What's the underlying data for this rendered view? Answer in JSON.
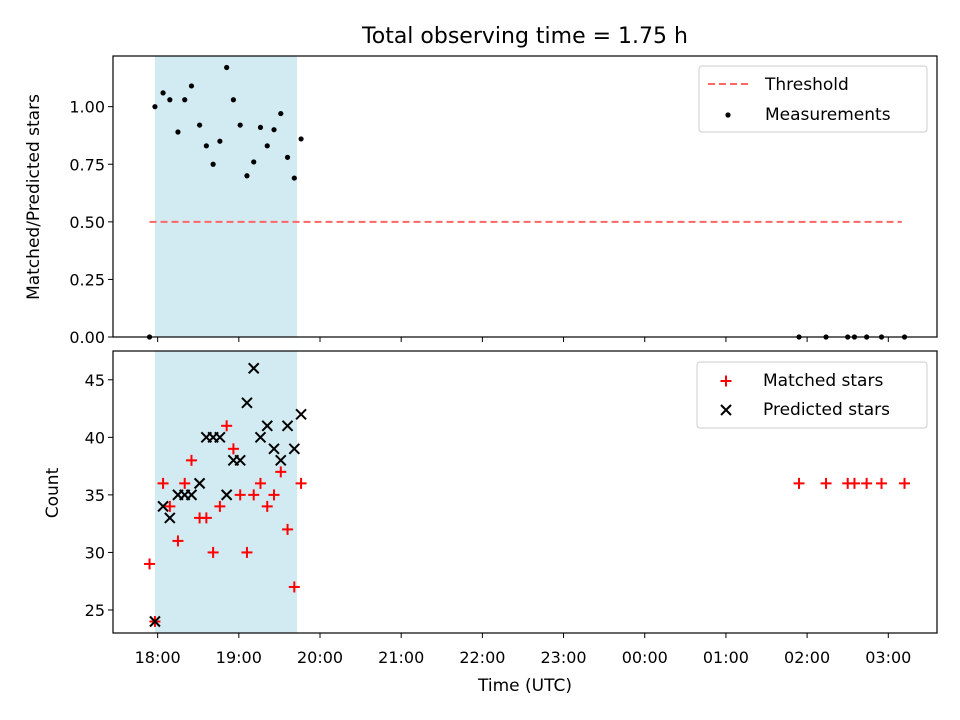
{
  "title": "Total observing time = 1.75 h",
  "colors": {
    "shade": "#add8e6",
    "threshold": "#ff6666",
    "matched": "#ff0000",
    "predicted": "#000000",
    "measurements": "#000000"
  },
  "chart_data": [
    {
      "type": "scatter",
      "ylabel": "Matched/Predicted stars",
      "ylim": [
        0,
        1.22
      ],
      "yticks": [
        "0.00",
        "0.25",
        "0.50",
        "0.75",
        "1.00"
      ],
      "yticks_values": [
        0,
        0.25,
        0.5,
        0.75,
        1.0
      ],
      "shaded_span": [
        "17:58",
        "19:43"
      ],
      "legend": {
        "position": "upper right",
        "entries": [
          "Threshold",
          "Measurements"
        ]
      },
      "threshold": {
        "name": "Threshold",
        "y": 0.5,
        "x_range": [
          "17:54",
          "27:10"
        ]
      },
      "series": [
        {
          "name": "Measurements",
          "x": [
            "17:54",
            "17:58",
            "18:04",
            "18:09",
            "18:15",
            "18:20",
            "18:25",
            "18:31",
            "18:36",
            "18:41",
            "18:46",
            "18:51",
            "18:56",
            "19:01",
            "19:06",
            "19:11",
            "19:16",
            "19:21",
            "19:26",
            "19:31",
            "19:36",
            "19:41",
            "19:46",
            "25:54",
            "26:14",
            "26:30",
            "26:35",
            "26:44",
            "26:55",
            "27:12"
          ],
          "y": [
            0.0,
            1.0,
            1.06,
            1.03,
            0.89,
            1.03,
            1.09,
            0.92,
            0.83,
            0.75,
            0.85,
            1.17,
            1.03,
            0.92,
            0.7,
            0.76,
            0.91,
            0.83,
            0.9,
            0.97,
            0.78,
            0.69,
            0.86,
            0.0,
            0.0,
            0.0,
            0.0,
            0.0,
            0.0,
            0.0
          ]
        }
      ]
    },
    {
      "type": "scatter",
      "xlabel": "Time (UTC)",
      "ylabel": "Count",
      "ylim": [
        23,
        47.5
      ],
      "yticks": [
        "25",
        "30",
        "35",
        "40",
        "45"
      ],
      "yticks_values": [
        25,
        30,
        35,
        40,
        45
      ],
      "xlim": [
        "17:27",
        "27:36"
      ],
      "xticks": [
        "18:00",
        "19:00",
        "20:00",
        "21:00",
        "22:00",
        "23:00",
        "00:00",
        "01:00",
        "02:00",
        "03:00"
      ],
      "xticks_values": [
        "18:00",
        "19:00",
        "20:00",
        "21:00",
        "22:00",
        "23:00",
        "24:00",
        "25:00",
        "26:00",
        "27:00"
      ],
      "shaded_span": [
        "17:58",
        "19:43"
      ],
      "legend": {
        "position": "upper right",
        "entries": [
          "Matched stars",
          "Predicted stars"
        ]
      },
      "series": [
        {
          "name": "Matched stars",
          "marker": "+",
          "x": [
            "17:54",
            "17:58",
            "18:04",
            "18:09",
            "18:15",
            "18:20",
            "18:25",
            "18:31",
            "18:36",
            "18:41",
            "18:46",
            "18:51",
            "18:56",
            "19:01",
            "19:06",
            "19:11",
            "19:16",
            "19:21",
            "19:26",
            "19:31",
            "19:36",
            "19:41",
            "19:46",
            "25:54",
            "26:14",
            "26:30",
            "26:35",
            "26:44",
            "26:55",
            "27:12"
          ],
          "y": [
            29,
            24,
            36,
            34,
            31,
            36,
            38,
            33,
            33,
            30,
            34,
            41,
            39,
            35,
            30,
            35,
            36,
            34,
            35,
            37,
            32,
            27,
            36,
            36,
            36,
            36,
            36,
            36,
            36,
            36
          ]
        },
        {
          "name": "Predicted stars",
          "marker": "x",
          "x": [
            "17:58",
            "18:04",
            "18:09",
            "18:15",
            "18:20",
            "18:25",
            "18:31",
            "18:36",
            "18:41",
            "18:46",
            "18:51",
            "18:56",
            "19:01",
            "19:06",
            "19:11",
            "19:16",
            "19:21",
            "19:26",
            "19:31",
            "19:36",
            "19:41",
            "19:46"
          ],
          "y": [
            24,
            34,
            33,
            35,
            35,
            35,
            36,
            40,
            40,
            40,
            35,
            38,
            38,
            43,
            46,
            40,
            41,
            39,
            38,
            41,
            39,
            42
          ]
        }
      ]
    }
  ]
}
